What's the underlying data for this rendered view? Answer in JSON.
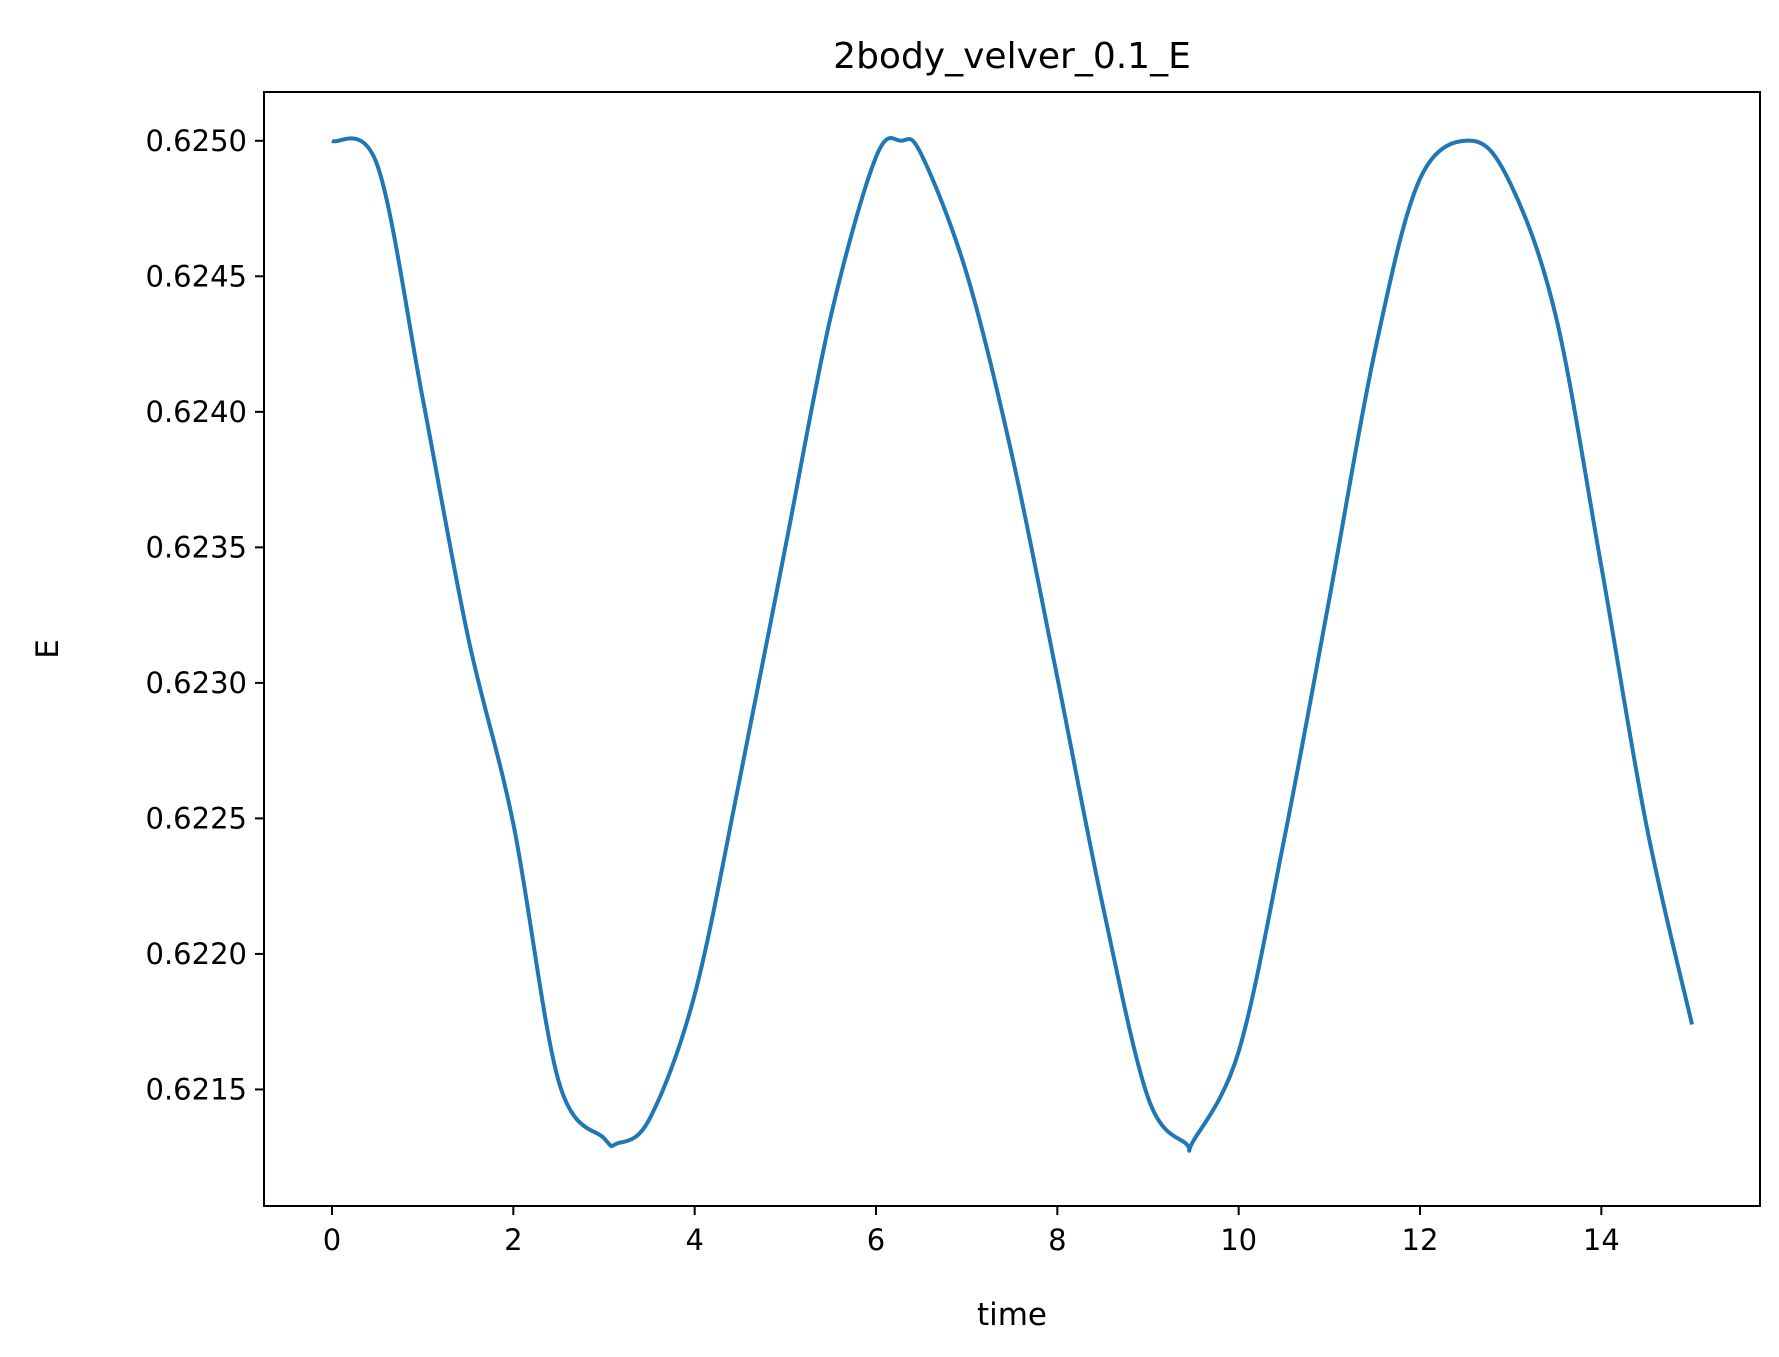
{
  "chart_data": {
    "type": "line",
    "title": "2body_velver_0.1_E",
    "xlabel": "time",
    "ylabel": "E",
    "xlim": [
      -0.75,
      15.75
    ],
    "ylim": [
      0.62107,
      0.62518
    ],
    "x_ticks": [
      0,
      2,
      4,
      6,
      8,
      10,
      12,
      14
    ],
    "x_tick_labels": [
      "0",
      "2",
      "4",
      "6",
      "8",
      "10",
      "12",
      "14"
    ],
    "y_ticks": [
      0.6215,
      0.622,
      0.6225,
      0.623,
      0.6235,
      0.624,
      0.6245,
      0.625
    ],
    "y_tick_labels": [
      "0.6215",
      "0.6220",
      "0.6225",
      "0.6230",
      "0.6235",
      "0.6240",
      "0.6245",
      "0.6250"
    ],
    "grid": false,
    "legend": false,
    "series": [
      {
        "color": "#1f77b4",
        "x": [
          0.0,
          0.5,
          1.0,
          1.5,
          2.0,
          2.5,
          3.0,
          3.14,
          3.5,
          4.0,
          4.5,
          5.0,
          5.5,
          6.0,
          6.28,
          6.5,
          7.0,
          7.5,
          8.0,
          8.5,
          9.0,
          9.42,
          9.5,
          10.0,
          10.5,
          11.0,
          11.5,
          12.0,
          12.57,
          13.0,
          13.5,
          14.0,
          14.5,
          15.0
        ],
        "values": [
          0.625,
          0.62491,
          0.62405,
          0.62317,
          0.62248,
          0.62153,
          0.62132,
          0.6213,
          0.62139,
          0.62185,
          0.62265,
          0.6235,
          0.62435,
          0.62494,
          0.625,
          0.62495,
          0.62451,
          0.62384,
          0.62302,
          0.62218,
          0.62147,
          0.6213,
          0.62131,
          0.62164,
          0.62242,
          0.62331,
          0.62422,
          0.62486,
          0.625,
          0.62484,
          0.62435,
          0.62343,
          0.62247,
          0.62174
        ]
      }
    ]
  }
}
